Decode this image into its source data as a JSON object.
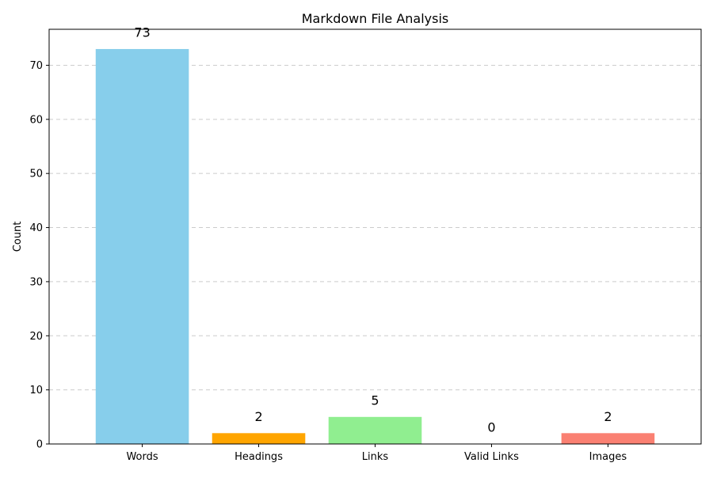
{
  "chart_data": {
    "type": "bar",
    "title": "Markdown File Analysis",
    "xlabel": "",
    "ylabel": "Count",
    "categories": [
      "Words",
      "Headings",
      "Links",
      "Valid Links",
      "Images"
    ],
    "values": [
      73,
      2,
      5,
      0,
      2
    ],
    "value_labels": [
      "73",
      "2",
      "5",
      "0",
      "2"
    ],
    "colors": [
      "#87ceeb",
      "#ffa500",
      "#90ee90",
      "#ffffff",
      "#fa8072"
    ],
    "ylim": [
      0,
      76.65
    ],
    "yticks": [
      0,
      10,
      20,
      30,
      40,
      50,
      60,
      70
    ],
    "grid": "y-axis dashed",
    "legend": "none"
  }
}
